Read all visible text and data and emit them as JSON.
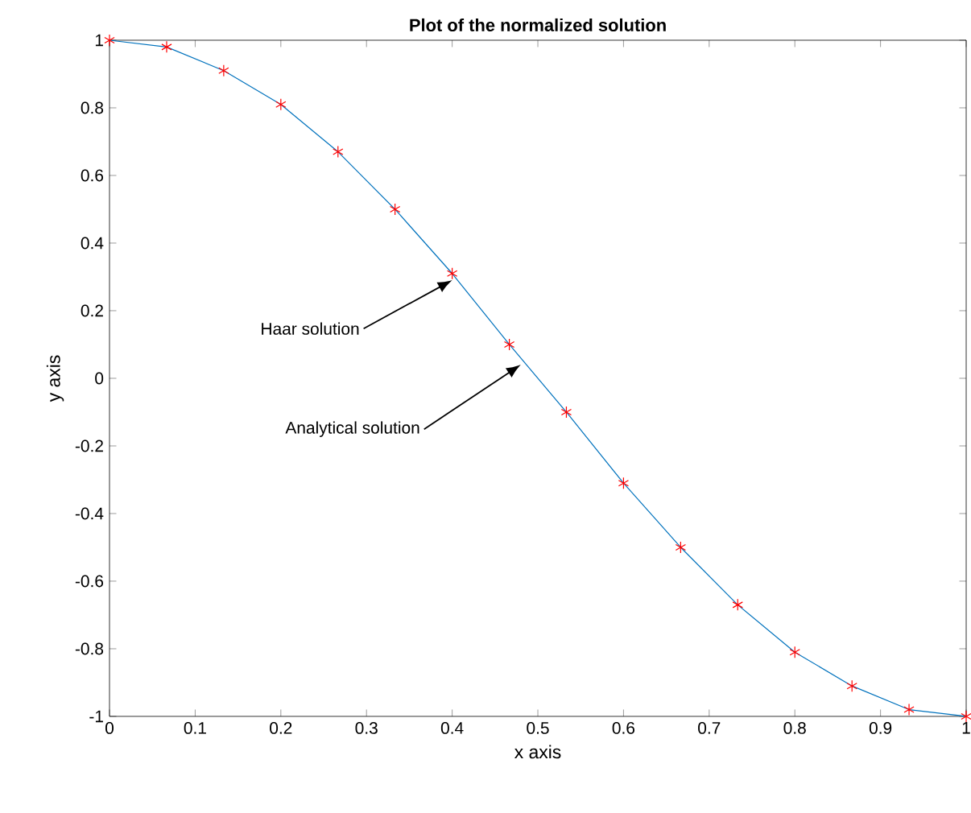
{
  "chart_data": {
    "type": "line",
    "title": "Plot of the normalized solution",
    "xlabel": "x axis",
    "ylabel": "y axis",
    "x": [
      0,
      0.0667,
      0.1333,
      0.2,
      0.2667,
      0.3333,
      0.4,
      0.4667,
      0.5333,
      0.6,
      0.6667,
      0.7333,
      0.8,
      0.8667,
      0.9333,
      1
    ],
    "series": [
      {
        "color": "#0072bd",
        "marker": "none",
        "line_style": "solid",
        "values": [
          1,
          0.98,
          0.91,
          0.81,
          0.67,
          0.5,
          0.31,
          0.1,
          -0.1,
          -0.31,
          -0.5,
          -0.67,
          -0.81,
          -0.91,
          -0.98,
          -1
        ]
      },
      {
        "type": "scatter",
        "color": "#ff0000",
        "marker": "cross",
        "values": [
          1,
          0.98,
          0.91,
          0.81,
          0.67,
          0.5,
          0.31,
          0.1,
          -0.1,
          -0.31,
          -0.5,
          -0.67,
          -0.81,
          -0.91,
          -0.98,
          -1
        ]
      }
    ],
    "xlim": [
      0,
      1
    ],
    "ylim": [
      -1,
      1
    ],
    "xticks": [
      0,
      0.1,
      0.2,
      0.3,
      0.4,
      0.5,
      0.6,
      0.7,
      0.8,
      0.9,
      1
    ],
    "yticks": [
      -1,
      -0.8,
      -0.6,
      -0.4,
      -0.2,
      0,
      0.2,
      0.4,
      0.6,
      0.8,
      1
    ],
    "grid": false,
    "annotations": [
      {
        "text": "Haar solution",
        "x": 0.4,
        "y": 0.29
      },
      {
        "text": "Analytical solution",
        "x": 0.48,
        "y": 0.04
      }
    ]
  }
}
